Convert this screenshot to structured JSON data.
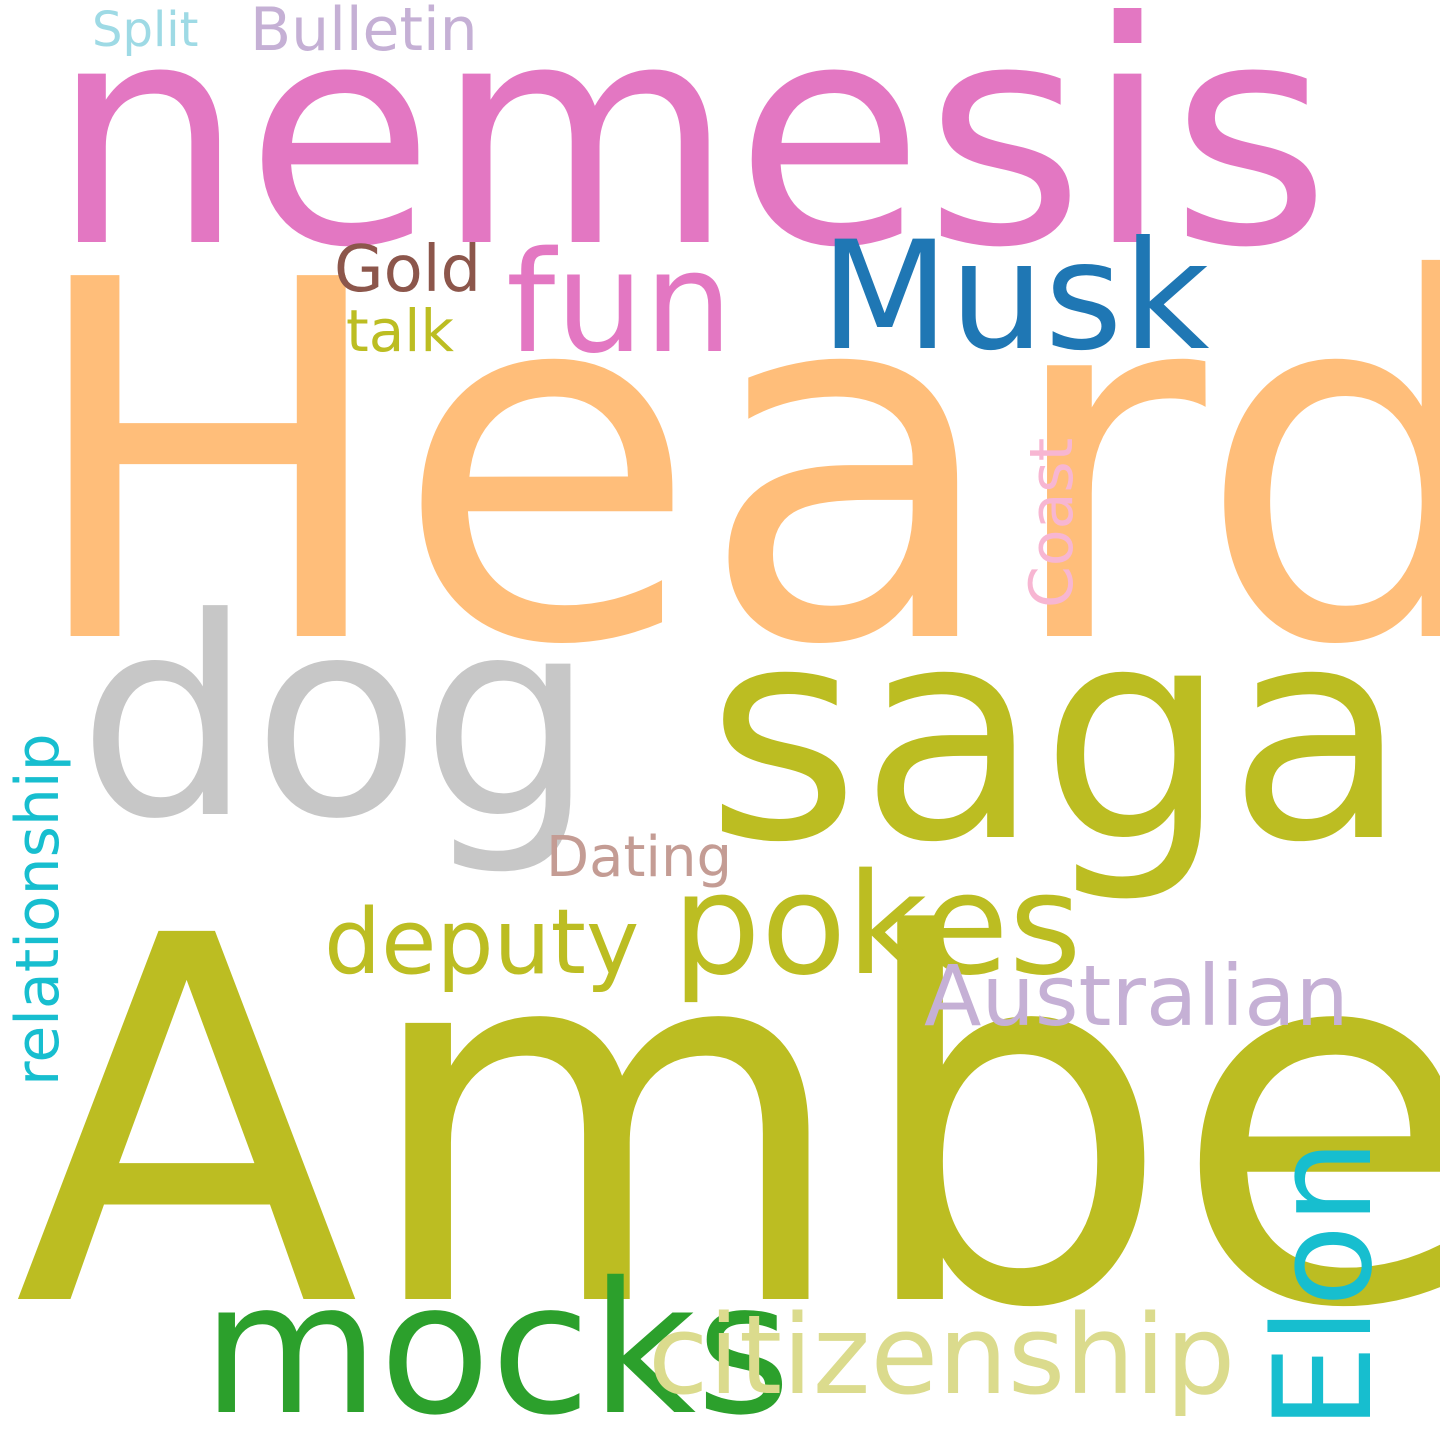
{
  "words": [
    {
      "text": "Heard",
      "color": "#ffbe7a"
    },
    {
      "text": "Amber",
      "color": "#bcbd22"
    },
    {
      "text": "nemesis",
      "color": "#e377c2"
    },
    {
      "text": "saga",
      "color": "#bcbd22"
    },
    {
      "text": "dog",
      "color": "#c7c7c7"
    },
    {
      "text": "mocks",
      "color": "#2ca02c"
    },
    {
      "text": "pokes",
      "color": "#bcbd22"
    },
    {
      "text": "Musk",
      "color": "#1f77b4"
    },
    {
      "text": "fun",
      "color": "#e377c2"
    },
    {
      "text": "citizenship",
      "color": "#dbdb8d"
    },
    {
      "text": "Elon",
      "color": "#17becf"
    },
    {
      "text": "deputy",
      "color": "#bcbd22"
    },
    {
      "text": "Australian",
      "color": "#c5b0d5"
    },
    {
      "text": "relationship",
      "color": "#17becf"
    },
    {
      "text": "Coast",
      "color": "#f7b6d2"
    },
    {
      "text": "Dating",
      "color": "#c49c94"
    },
    {
      "text": "Gold",
      "color": "#8c564b"
    },
    {
      "text": "talk",
      "color": "#bcbd22"
    },
    {
      "text": "Bulletin",
      "color": "#c5b0d5"
    },
    {
      "text": "Split",
      "color": "#9edae5"
    }
  ]
}
